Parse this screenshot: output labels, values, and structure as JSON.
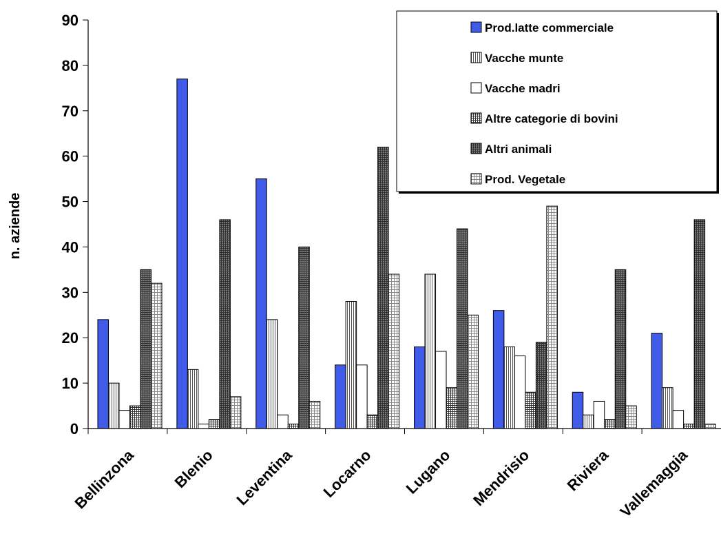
{
  "chart_data": {
    "type": "bar",
    "title": "",
    "xlabel": "",
    "ylabel": "n. aziende",
    "ylim": [
      0,
      90
    ],
    "yticks": [
      0,
      10,
      20,
      30,
      40,
      50,
      60,
      70,
      80,
      90
    ],
    "grid": false,
    "legend_position": "top-right",
    "categories": [
      "Bellinzona",
      "Blenio",
      "Leventina",
      "Locarno",
      "Lugano",
      "Mendrisio",
      "Riviera",
      "Vallemaggia"
    ],
    "series": [
      {
        "name": "Prod.latte commerciale",
        "values": [
          24,
          77,
          55,
          14,
          18,
          26,
          8,
          21
        ],
        "color": "#3f5be8",
        "pattern": "solid"
      },
      {
        "name": "Vacche munte",
        "values": [
          10,
          13,
          24,
          28,
          34,
          18,
          3,
          9
        ],
        "color": "#ffffff",
        "pattern": "vertical-lines"
      },
      {
        "name": "Vacche madri",
        "values": [
          4,
          1,
          3,
          14,
          17,
          16,
          6,
          4
        ],
        "color": "#ffffff",
        "pattern": "none"
      },
      {
        "name": "Altre categorie di bovini",
        "values": [
          5,
          2,
          1,
          3,
          9,
          8,
          2,
          1
        ],
        "color": "#ffffff",
        "pattern": "dense-grid"
      },
      {
        "name": "Altri animali",
        "values": [
          35,
          46,
          40,
          62,
          44,
          19,
          35,
          46
        ],
        "color": "#6b6b6b",
        "pattern": "dark-grid"
      },
      {
        "name": "Prod. Vegetale",
        "values": [
          32,
          7,
          6,
          34,
          25,
          49,
          5,
          1
        ],
        "color": "#ffffff",
        "pattern": "light-grid"
      }
    ]
  }
}
